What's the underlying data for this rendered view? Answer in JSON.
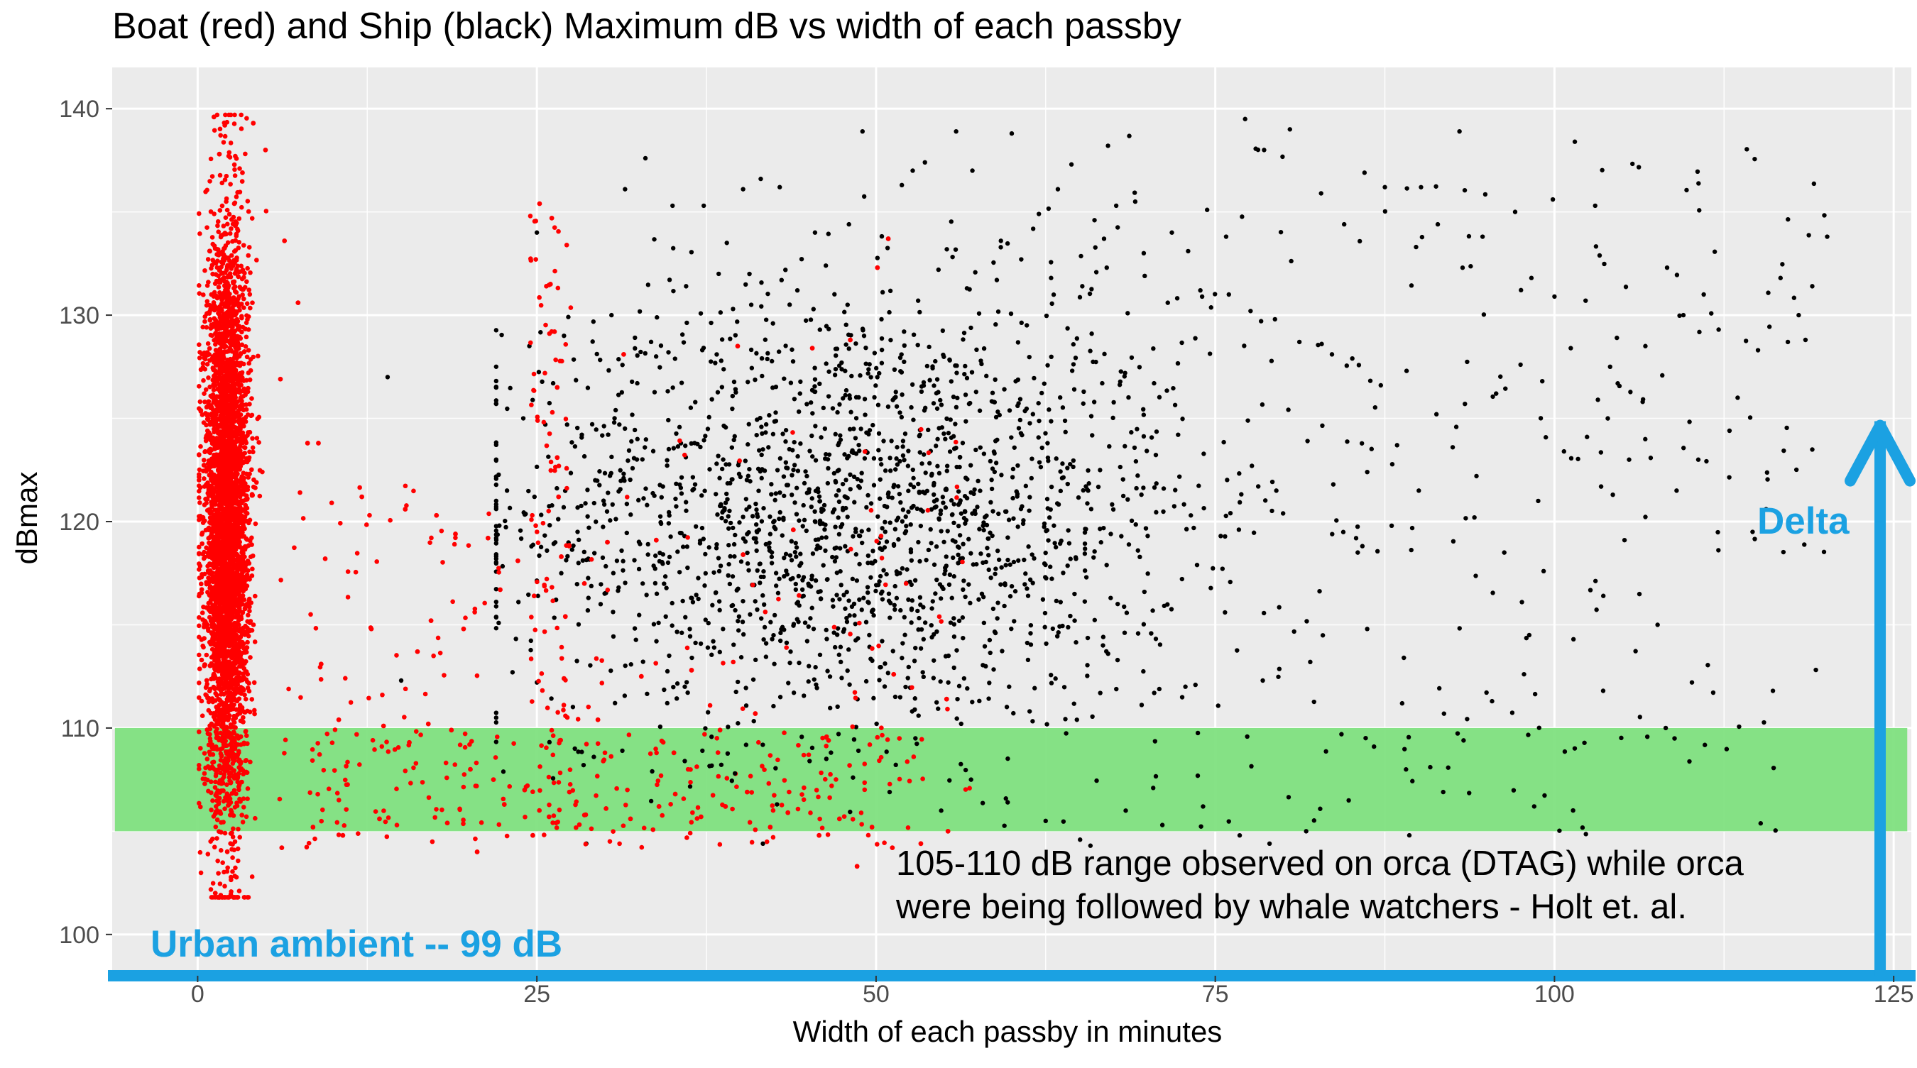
{
  "chart_data": {
    "type": "scatter",
    "title": "Boat (red) and Ship (black) Maximum dB vs width of each passby",
    "xlabel": "Width of each passby in minutes",
    "ylabel": "dBmax",
    "xlim": [
      -6.3,
      126.3
    ],
    "ylim": [
      98,
      142
    ],
    "x_ticks": [
      "0",
      "25",
      "50",
      "75",
      "100",
      "125"
    ],
    "x_tick_values": [
      0,
      25,
      50,
      75,
      100,
      125
    ],
    "y_ticks": [
      "100",
      "110",
      "120",
      "130",
      "140"
    ],
    "y_tick_values": [
      100,
      110,
      120,
      130,
      140
    ],
    "grid": true,
    "legend": "none",
    "colors": {
      "panel": "#ebebeb",
      "grid": "#ffffff",
      "boat": "#ff0000",
      "ship": "#000000",
      "band": "#7fe07f",
      "annotation_blue": "#1ba1e2"
    },
    "series": [
      {
        "name": "Boat",
        "color": "#ff0000",
        "description_points": [
          [
            1.2,
            139.6
          ],
          [
            2.0,
            139.2
          ],
          [
            4.1,
            139.3
          ],
          [
            1.6,
            137.8
          ],
          [
            3.3,
            136.9
          ],
          [
            5.0,
            138.0
          ],
          [
            0.9,
            133.1
          ],
          [
            2.7,
            135.4
          ],
          [
            6.4,
            133.6
          ],
          [
            7.4,
            130.6
          ],
          [
            6.1,
            126.9
          ],
          [
            8.1,
            123.8
          ],
          [
            8.9,
            123.8
          ],
          [
            9.4,
            118.2
          ],
          [
            12.1,
            121.2
          ],
          [
            15.3,
            120.6
          ],
          [
            17.6,
            120.3
          ],
          [
            19.0,
            119.4
          ],
          [
            21.4,
            119.2
          ],
          [
            22.3,
            116.7
          ],
          [
            19.6,
            114.8
          ],
          [
            17.2,
            115.2
          ],
          [
            16.2,
            113.7
          ],
          [
            12.8,
            114.8
          ],
          [
            9.1,
            113.1
          ],
          [
            10.4,
            110.4
          ],
          [
            13.7,
            110.1
          ],
          [
            15.6,
            109.3
          ],
          [
            17.0,
            110.2
          ],
          [
            18.7,
            109.9
          ],
          [
            20.1,
            108.0
          ],
          [
            21.8,
            107.5
          ],
          [
            22.6,
            106.3
          ],
          [
            24.1,
            107.0
          ],
          [
            25.9,
            105.7
          ],
          [
            24.7,
            104.8
          ],
          [
            20.6,
            104.0
          ],
          [
            18.4,
            105.4
          ],
          [
            13.4,
            105.6
          ],
          [
            10.7,
            104.8
          ],
          [
            6.2,
            104.2
          ],
          [
            8.5,
            105.2
          ],
          [
            1.3,
            102.0
          ],
          [
            1.7,
            101.9
          ],
          [
            25.2,
            135.4
          ],
          [
            26.1,
            134.7
          ],
          [
            26.0,
            131.5
          ],
          [
            26.3,
            129.2
          ],
          [
            26.5,
            126.5
          ],
          [
            26.5,
            123.1
          ],
          [
            26.6,
            121.2
          ],
          [
            26.8,
            118.3
          ],
          [
            27.1,
            115.4
          ],
          [
            27.0,
            112.4
          ],
          [
            26.7,
            109.4
          ],
          [
            27.4,
            106.9
          ],
          [
            28.6,
            105.8
          ],
          [
            30.1,
            106.1
          ],
          [
            31.9,
            105.6
          ],
          [
            34.0,
            106.2
          ],
          [
            35.2,
            106.8
          ],
          [
            37.1,
            105.7
          ],
          [
            38.9,
            106.2
          ],
          [
            40.5,
            106.9
          ],
          [
            42.2,
            105.2
          ],
          [
            43.5,
            105.9
          ],
          [
            45.8,
            104.8
          ],
          [
            47.3,
            105.6
          ],
          [
            48.6,
            103.3
          ],
          [
            49.7,
            105.2
          ],
          [
            51.2,
            104.2
          ],
          [
            53.3,
            104.4
          ],
          [
            55.3,
            105.0
          ],
          [
            48.1,
            128.8
          ],
          [
            45.3,
            128.4
          ],
          [
            50.9,
            133.7
          ],
          [
            50.1,
            132.3
          ],
          [
            31.4,
            128.1
          ],
          [
            39.8,
            128.5
          ],
          [
            33.8,
            119.1
          ],
          [
            40.2,
            118.4
          ],
          [
            43.9,
            119.6
          ],
          [
            36.4,
            112.8
          ],
          [
            41.1,
            110.7
          ],
          [
            46.5,
            109.4
          ],
          [
            51.3,
            112.6
          ],
          [
            55.2,
            111.4
          ],
          [
            29.5,
            110.4
          ],
          [
            32.7,
            112.5
          ],
          [
            24.8,
            116.4
          ],
          [
            23.6,
            118.1
          ],
          [
            28.5,
            117.0
          ],
          [
            30.2,
            119.0
          ],
          [
            35.1,
            108.8
          ],
          [
            38.5,
            109.9
          ]
        ]
      },
      {
        "name": "Ship",
        "color": "#000000",
        "description_points": [
          [
            14.0,
            127.0
          ],
          [
            15.0,
            112.3
          ],
          [
            25.0,
            134.0
          ],
          [
            27.0,
            129.0
          ],
          [
            30.5,
            130.0
          ],
          [
            31.5,
            136.1
          ],
          [
            33.0,
            137.6
          ],
          [
            35.0,
            135.3
          ],
          [
            37.3,
            135.3
          ],
          [
            39.0,
            133.5
          ],
          [
            40.2,
            136.1
          ],
          [
            41.5,
            136.6
          ],
          [
            42.9,
            136.2
          ],
          [
            45.5,
            134.0
          ],
          [
            48.0,
            134.4
          ],
          [
            49.0,
            138.9
          ],
          [
            51.9,
            136.3
          ],
          [
            52.7,
            137.0
          ],
          [
            53.6,
            137.4
          ],
          [
            55.9,
            138.9
          ],
          [
            57.1,
            137.0
          ],
          [
            59.2,
            133.6
          ],
          [
            60.0,
            138.8
          ],
          [
            62.0,
            134.9
          ],
          [
            63.4,
            136.1
          ],
          [
            64.4,
            137.3
          ],
          [
            66.1,
            134.6
          ],
          [
            67.7,
            135.3
          ],
          [
            69.1,
            135.5
          ],
          [
            71.8,
            134.0
          ],
          [
            73.0,
            133.1
          ],
          [
            74.4,
            135.1
          ],
          [
            75.8,
            133.8
          ],
          [
            77.2,
            139.5
          ],
          [
            78.6,
            138.0
          ],
          [
            80.5,
            139.0
          ],
          [
            82.8,
            135.9
          ],
          [
            84.5,
            134.4
          ],
          [
            86.0,
            136.9
          ],
          [
            87.5,
            136.2
          ],
          [
            89.8,
            133.3
          ],
          [
            91.4,
            134.4
          ],
          [
            93.0,
            138.9
          ],
          [
            94.7,
            133.8
          ],
          [
            97.1,
            135.0
          ],
          [
            98.3,
            131.8
          ],
          [
            100.0,
            130.9
          ],
          [
            101.5,
            138.4
          ],
          [
            103.0,
            135.3
          ],
          [
            104.6,
            128.9
          ],
          [
            106.5,
            125.8
          ],
          [
            108.3,
            132.3
          ],
          [
            109.5,
            130.0
          ],
          [
            111.0,
            131.0
          ],
          [
            112.1,
            129.3
          ],
          [
            113.5,
            126.0
          ],
          [
            115.0,
            128.3
          ],
          [
            116.1,
            111.8
          ],
          [
            117.2,
            128.7
          ],
          [
            118.0,
            130.0
          ],
          [
            119.0,
            131.4
          ],
          [
            120.1,
            133.8
          ],
          [
            114.6,
            119.5
          ],
          [
            108.2,
            110.0
          ],
          [
            105.5,
            123.0
          ],
          [
            103.6,
            116.4
          ],
          [
            101.4,
            114.3
          ],
          [
            99.2,
            117.6
          ],
          [
            97.6,
            116.1
          ],
          [
            95.4,
            111.3
          ],
          [
            93.3,
            109.4
          ],
          [
            91.8,
            106.9
          ],
          [
            88.9,
            113.4
          ],
          [
            86.7,
            109.1
          ],
          [
            84.3,
            109.7
          ],
          [
            81.7,
            105.0
          ],
          [
            79.0,
            104.4
          ],
          [
            76.8,
            104.8
          ],
          [
            74.1,
            106.2
          ],
          [
            71.1,
            105.3
          ],
          [
            68.4,
            106.0
          ],
          [
            65.8,
            104.3
          ],
          [
            62.5,
            105.5
          ],
          [
            59.7,
            106.4
          ],
          [
            57.0,
            107.5
          ],
          [
            54.8,
            106.0
          ],
          [
            51.0,
            106.9
          ],
          [
            48.3,
            107.6
          ],
          [
            45.1,
            108.4
          ],
          [
            42.7,
            106.3
          ],
          [
            39.6,
            107.8
          ],
          [
            37.2,
            108.9
          ],
          [
            35.9,
            108.4
          ],
          [
            33.5,
            107.9
          ],
          [
            31.3,
            108.9
          ],
          [
            29.2,
            108.6
          ],
          [
            27.8,
            109.0
          ],
          [
            48.7,
            108.9
          ],
          [
            52.9,
            109.5
          ],
          [
            56.0,
            111.4
          ],
          [
            61.2,
            113.3
          ],
          [
            64.8,
            110.4
          ],
          [
            67.1,
            113.6
          ],
          [
            70.5,
            111.7
          ],
          [
            72.8,
            112.0
          ],
          [
            78.5,
            112.3
          ],
          [
            82.0,
            113.2
          ],
          [
            85.5,
            118.5
          ],
          [
            88.0,
            119.8
          ],
          [
            90.0,
            121.5
          ],
          [
            92.5,
            123.6
          ],
          [
            94.1,
            120.2
          ],
          [
            96.3,
            118.5
          ],
          [
            98.8,
            121.0
          ],
          [
            100.7,
            123.4
          ],
          [
            102.4,
            124.1
          ],
          [
            104.3,
            121.3
          ],
          [
            107.6,
            115.0
          ],
          [
            109.0,
            121.5
          ],
          [
            110.6,
            123.0
          ],
          [
            112.9,
            124.4
          ],
          [
            115.6,
            120.6
          ],
          [
            118.5,
            128.8
          ],
          [
            106.7,
            128.5
          ],
          [
            104.1,
            127.5
          ],
          [
            26.2,
            126.7
          ],
          [
            24.0,
            125.0
          ],
          [
            22.8,
            121.5
          ],
          [
            24.6,
            118.8
          ],
          [
            26.8,
            117.5
          ],
          [
            28.0,
            119.5
          ],
          [
            29.3,
            122.0
          ],
          [
            30.7,
            124.8
          ],
          [
            32.4,
            126.7
          ],
          [
            34.7,
            128.2
          ],
          [
            36.0,
            131.4
          ],
          [
            38.4,
            132.0
          ],
          [
            40.8,
            130.5
          ],
          [
            42.4,
            129.6
          ],
          [
            44.2,
            131.2
          ],
          [
            46.3,
            132.4
          ],
          [
            47.9,
            130.5
          ],
          [
            50.4,
            129.8
          ],
          [
            53.1,
            130.7
          ],
          [
            54.6,
            132.2
          ],
          [
            56.7,
            131.3
          ],
          [
            58.9,
            131.7
          ],
          [
            60.7,
            132.7
          ],
          [
            62.9,
            131.8
          ],
          [
            65.2,
            131.4
          ],
          [
            67.0,
            132.3
          ],
          [
            69.8,
            131.9
          ],
          [
            71.5,
            130.6
          ],
          [
            73.9,
            131.2
          ],
          [
            76.0,
            131.0
          ],
          [
            77.6,
            130.2
          ],
          [
            79.4,
            129.8
          ],
          [
            81.2,
            128.7
          ],
          [
            83.6,
            128.1
          ],
          [
            85.1,
            127.9
          ],
          [
            87.2,
            126.6
          ],
          [
            89.1,
            127.3
          ],
          [
            91.3,
            125.2
          ],
          [
            93.4,
            125.7
          ],
          [
            95.7,
            126.2
          ],
          [
            97.5,
            127.6
          ],
          [
            99.1,
            126.8
          ],
          [
            101.2,
            128.4
          ],
          [
            103.2,
            125.9
          ],
          [
            88.4,
            123.7
          ],
          [
            86.2,
            122.4
          ],
          [
            83.7,
            121.8
          ],
          [
            81.8,
            123.9
          ],
          [
            79.5,
            121.5
          ],
          [
            77.7,
            122.7
          ],
          [
            75.4,
            119.3
          ],
          [
            73.2,
            120.3
          ],
          [
            71.2,
            121.6
          ],
          [
            69.3,
            118.6
          ],
          [
            67.3,
            119.4
          ],
          [
            65.5,
            117.3
          ],
          [
            63.6,
            116.1
          ],
          [
            61.5,
            118.4
          ],
          [
            59.5,
            117.0
          ],
          [
            57.8,
            116.5
          ],
          [
            55.5,
            115.1
          ],
          [
            53.5,
            114.3
          ],
          [
            51.8,
            115.7
          ],
          [
            49.5,
            114.5
          ],
          [
            47.4,
            113.2
          ],
          [
            45.4,
            114.8
          ],
          [
            43.7,
            113.7
          ],
          [
            41.9,
            114.1
          ],
          [
            39.9,
            115.4
          ],
          [
            38.0,
            114.2
          ],
          [
            36.5,
            116.1
          ],
          [
            34.5,
            115.4
          ],
          [
            32.8,
            117.0
          ],
          [
            30.9,
            118.1
          ],
          [
            28.8,
            116.3
          ]
        ]
      }
    ],
    "reference_band": {
      "ymin": 105,
      "ymax": 110,
      "label_line1": "105-110 dB range observed on orca (DTAG) while orca",
      "label_line2": "were being followed by whale watchers - Holt et. al."
    },
    "annotations": {
      "baseline_y": 98,
      "baseline_label": "Urban ambient -- 99 dB",
      "delta_label": "Delta",
      "delta_arrow_x": 124,
      "delta_arrow_y_start": 98,
      "delta_arrow_y_end": 125
    }
  }
}
